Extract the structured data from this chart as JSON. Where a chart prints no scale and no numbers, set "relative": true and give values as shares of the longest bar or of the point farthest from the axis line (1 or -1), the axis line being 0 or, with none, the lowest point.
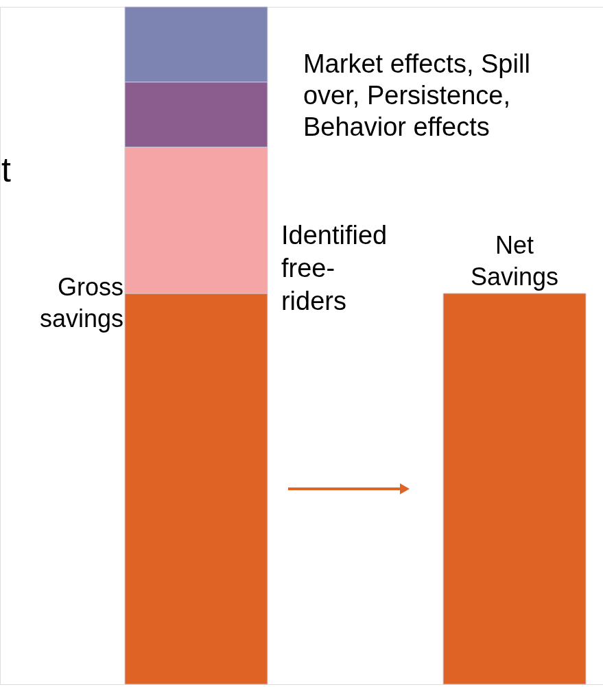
{
  "chart_data": {
    "type": "bar",
    "stacked": true,
    "relative": true,
    "categories": [
      "Gross savings",
      "Net Savings"
    ],
    "series": [
      {
        "color": "#e06326",
        "values": [
          0.577,
          0.577
        ]
      },
      {
        "name": "Identified free-riders",
        "color": "#f5a5a5",
        "values": [
          0.216,
          null
        ]
      },
      {
        "color": "#8a5d8e",
        "values": [
          0.096,
          null
        ]
      },
      {
        "name": "Market effects, Spill over, Persistence, Behavior effects",
        "color": "#7d84b2",
        "values": [
          0.111,
          null
        ]
      }
    ],
    "annotations": [
      "t"
    ]
  }
}
